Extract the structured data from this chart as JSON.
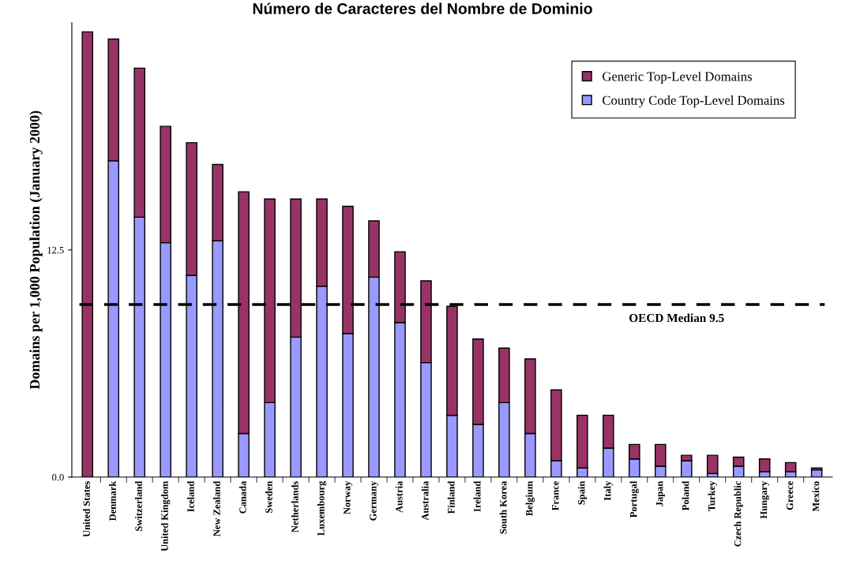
{
  "chart_data": {
    "type": "bar",
    "stacked": true,
    "title": "Número de Caracteres del Nombre de Dominio",
    "ylabel": "Domains per 1,000 Population (January 2000)",
    "categories": [
      "United States",
      "Denmark",
      "Switzerland",
      "United Kingdom",
      "Iceland",
      "New Zealand",
      "Canada",
      "Sweden",
      "Netherlands",
      "Luxembourg",
      "Norway",
      "Germany",
      "Austria",
      "Australia",
      "Finland",
      "Ireland",
      "South Korea",
      "Belgium",
      "France",
      "Spain",
      "Italy",
      "Portugal",
      "Japan",
      "Poland",
      "Turkey",
      "Czech Republic",
      "Hungary",
      "Greece",
      "Mexico"
    ],
    "series": [
      {
        "name": "Country Code Top-Level Domains",
        "color": "#9999ff",
        "values": [
          null,
          17.4,
          14.3,
          12.9,
          11.1,
          13.0,
          2.4,
          4.1,
          7.7,
          10.5,
          7.9,
          11.0,
          8.5,
          6.3,
          3.4,
          2.9,
          4.1,
          2.4,
          0.9,
          0.5,
          1.6,
          1.0,
          0.6,
          0.9,
          0.2,
          0.6,
          0.3,
          0.3,
          0.4
        ]
      },
      {
        "name": "Generic Top-Level Domains",
        "color": "#993366",
        "values": [
          24.5,
          6.7,
          8.2,
          6.4,
          7.3,
          4.2,
          13.3,
          11.2,
          7.6,
          4.8,
          7.0,
          3.1,
          3.9,
          4.5,
          6.0,
          4.7,
          3.0,
          4.1,
          3.9,
          2.9,
          1.8,
          0.8,
          1.2,
          0.3,
          1.0,
          0.5,
          0.7,
          0.5,
          0.1
        ]
      }
    ],
    "ylim": [
      0,
      25
    ],
    "yticks": [
      {
        "value": 0,
        "label": "0.0"
      },
      {
        "value": 12.5,
        "label": "12.5"
      }
    ],
    "ref_lines": [
      {
        "axis": "y",
        "value": 9.5,
        "label": "OECD Median 9.5",
        "color": "#000000",
        "line_style": "dashed"
      }
    ],
    "legend": "top right",
    "grid": false
  }
}
